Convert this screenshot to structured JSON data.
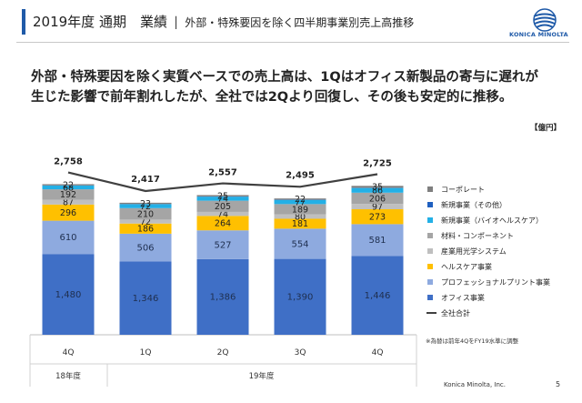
{
  "header": {
    "title": "2019年度 通期　業績",
    "subtitle": "外部・特殊要因を除く四半期事業別売上高推移",
    "logo_text": "KONICA MINOLTA"
  },
  "lead_text": "外部・特殊要因を除く実質ベースでの売上高は、1Qはオフィス新製品の寄与に遅れが\n生じた影響で前年割れしたが、全社では2Qより回復し、その後も安定的に推移。",
  "footer": {
    "company": "Konica Minolta, Inc.",
    "page": "5"
  },
  "colors": {
    "office": "#3f6fc6",
    "professional_print": "#8eaadf",
    "healthcare": "#ffc000",
    "industrial_optics": "#bfbfbf",
    "materials": "#a5a5a5",
    "new_bio": "#23b0e6",
    "new_other": "#1f60c0",
    "corporate": "#7f7f7f",
    "total_line": "#404040"
  },
  "chart_data": {
    "type": "bar",
    "stacked": true,
    "unit_label": "【億円】",
    "categories": [
      "4Q",
      "1Q",
      "2Q",
      "3Q",
      "4Q"
    ],
    "period_labels": [
      {
        "label": "18年度",
        "span": [
          0,
          0
        ]
      },
      {
        "label": "19年度",
        "span": [
          1,
          4
        ]
      }
    ],
    "series": [
      {
        "name": "オフィス事業",
        "color_key": "office",
        "values": [
          1480,
          1346,
          1386,
          1390,
          1446
        ],
        "labels": [
          "1,480",
          "1,346",
          "1,386",
          "1,390",
          "1,446"
        ],
        "show": [
          true,
          true,
          true,
          true,
          true
        ]
      },
      {
        "name": "プロフェッショナルプリント事業",
        "color_key": "professional_print",
        "values": [
          610,
          506,
          527,
          554,
          581
        ],
        "labels": [
          "610",
          "506",
          "527",
          "554",
          "581"
        ],
        "show": [
          true,
          true,
          true,
          true,
          true
        ]
      },
      {
        "name": "ヘルスケア事業",
        "color_key": "healthcare",
        "values": [
          296,
          186,
          264,
          181,
          273
        ],
        "labels": [
          "296",
          "186",
          "264",
          "181",
          "273"
        ],
        "show": [
          true,
          true,
          true,
          true,
          true
        ]
      },
      {
        "name": "産業用光学システム",
        "color_key": "industrial_optics",
        "values": [
          87,
          72,
          74,
          80,
          97
        ],
        "labels": [
          "87",
          "72",
          "74",
          "80",
          "97"
        ],
        "show": [
          true,
          true,
          true,
          true,
          true
        ]
      },
      {
        "name": "材料・コンポーネント",
        "color_key": "materials",
        "values": [
          192,
          210,
          205,
          189,
          206
        ],
        "labels": [
          "192",
          "210",
          "205",
          "189",
          "206"
        ],
        "show": [
          true,
          true,
          true,
          true,
          true
        ]
      },
      {
        "name": "新規事業（バイオヘルスケア）",
        "color_key": "new_bio",
        "values": [
          68,
          72,
          74,
          77,
          86
        ],
        "labels": [
          "68",
          "72",
          "74",
          "77",
          "86"
        ],
        "show": [
          true,
          true,
          true,
          true,
          true
        ]
      },
      {
        "name": "新規事業（その他）",
        "color_key": "new_other",
        "values": [
          4,
          4,
          4,
          4,
          4
        ],
        "labels": [
          "",
          "",
          "",
          "",
          ""
        ],
        "show": [
          false,
          false,
          false,
          false,
          false
        ]
      },
      {
        "name": "コーポレート",
        "color_key": "corporate",
        "values": [
          22,
          23,
          25,
          22,
          35
        ],
        "labels": [
          "22",
          "23",
          "25",
          "22",
          "35"
        ],
        "show": [
          true,
          true,
          true,
          true,
          true
        ]
      }
    ],
    "total": {
      "name": "全社合計",
      "values": [
        2758,
        2417,
        2557,
        2495,
        2725
      ],
      "labels": [
        "2,758",
        "2,417",
        "2,557",
        "2,495",
        "2,725"
      ]
    },
    "legend_order": [
      "コーポレート",
      "新規事業（その他）",
      "新規事業（バイオヘルスケア）",
      "材料・コンポーネント",
      "産業用光学システム",
      "ヘルスケア事業",
      "プロフェッショナルプリント事業",
      "オフィス事業",
      "全社合計"
    ],
    "legend_position": "right",
    "note": "※為替は前年4QをFY19水準に調整",
    "grid": false
  }
}
